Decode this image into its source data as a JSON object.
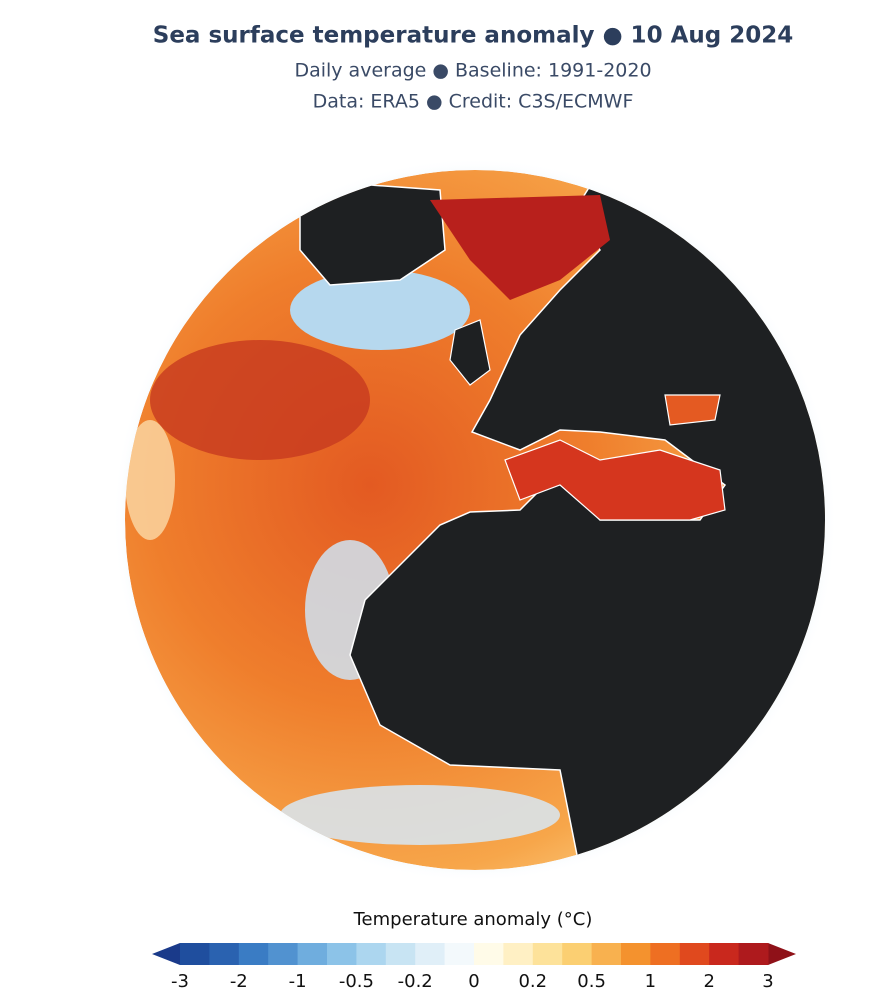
{
  "header": {
    "title": "Sea surface temperature anomaly ● 10 Aug 2024",
    "subtitle": "Daily average ● Baseline: 1991-2020",
    "credit": "Data: ERA5 ● Credit: C3S/ECMWF"
  },
  "legend": {
    "title": "Temperature anomaly (°C)",
    "ticks": [
      -3,
      -2,
      -1,
      -0.5,
      -0.2,
      0,
      0.2,
      0.5,
      1,
      2,
      3
    ],
    "colors": [
      "#1f4e9e",
      "#2a62b0",
      "#3a7cc4",
      "#5192d0",
      "#6fadde",
      "#8cc3e8",
      "#acd6ef",
      "#c8e4f3",
      "#e0eff8",
      "#f3f9fc",
      "#fffbe8",
      "#fff0c4",
      "#fde29a",
      "#fbcf72",
      "#f8b14f",
      "#f4922e",
      "#ee6f22",
      "#e0491e",
      "#c9281d",
      "#ae1a1d"
    ],
    "under_color": "#1a3a8a",
    "over_color": "#8f1118"
  }
}
